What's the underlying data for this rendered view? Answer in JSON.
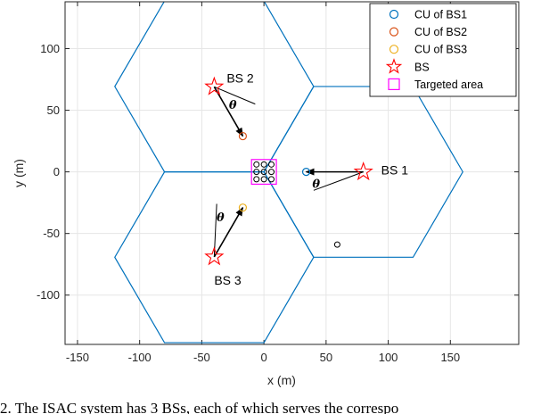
{
  "chart_data": {
    "type": "scatter",
    "xlabel": "x (m)",
    "ylabel": "y (m)",
    "xlim": [
      -160,
      205
    ],
    "ylim": [
      -140,
      138
    ],
    "xticks": [
      -150,
      -100,
      -50,
      0,
      50,
      100,
      150
    ],
    "yticks": [
      -100,
      -50,
      0,
      50,
      100
    ],
    "grid": true,
    "legend_position": "top-right",
    "legend": [
      {
        "label": "CU of  BS1",
        "marker": "circle",
        "color": "#0072BD"
      },
      {
        "label": "CU of BS2",
        "marker": "circle",
        "color": "#D95319"
      },
      {
        "label": "CU of BS3",
        "marker": "circle",
        "color": "#EDB120"
      },
      {
        "label": "BS",
        "marker": "pentagram",
        "color": "#FF0000"
      },
      {
        "label": "Targeted area",
        "marker": "square",
        "color": "#FF00FF"
      }
    ],
    "hexagons": [
      {
        "center": [
          80,
          0
        ],
        "radius": 80
      },
      {
        "center": [
          -40,
          69.3
        ],
        "radius": 80
      },
      {
        "center": [
          -40,
          -69.3
        ],
        "radius": 80
      }
    ],
    "hex_color": "#0072BD",
    "base_stations": [
      {
        "label": "BS 1",
        "x": 80,
        "y": 0
      },
      {
        "label": "BS 2",
        "x": -40,
        "y": 69
      },
      {
        "label": "BS 3",
        "x": -40,
        "y": -69
      }
    ],
    "cus": [
      {
        "bs": "BS1",
        "x": 34,
        "y": 0,
        "color": "#0072BD"
      },
      {
        "bs": "BS2",
        "x": -17,
        "y": 29,
        "color": "#D95319"
      },
      {
        "bs": "BS3",
        "x": -17,
        "y": -29,
        "color": "#EDB120"
      }
    ],
    "targets": [
      {
        "x": -6,
        "y": 6
      },
      {
        "x": 0,
        "y": 6
      },
      {
        "x": 6,
        "y": 6
      },
      {
        "x": -6,
        "y": 0
      },
      {
        "x": 0,
        "y": 0
      },
      {
        "x": 6,
        "y": 0
      },
      {
        "x": -6,
        "y": -6
      },
      {
        "x": 0,
        "y": -6
      },
      {
        "x": 6,
        "y": -6
      },
      {
        "x": 59,
        "y": -59
      }
    ],
    "target_area": {
      "x_range": [
        -10,
        10
      ],
      "y_range": [
        -10,
        10
      ]
    },
    "arrows": [
      {
        "from": [
          80,
          0
        ],
        "to": [
          34,
          0
        ]
      },
      {
        "from": [
          -40,
          69
        ],
        "to": [
          -17,
          29
        ]
      },
      {
        "from": [
          -40,
          -69
        ],
        "to": [
          -17,
          -29
        ]
      }
    ],
    "reference_lines": [
      {
        "from": [
          80,
          0
        ],
        "to": [
          40,
          -15
        ]
      },
      {
        "from": [
          -40,
          69
        ],
        "to": [
          -7,
          55
        ]
      },
      {
        "from": [
          -40,
          -69
        ],
        "to": [
          -38,
          -26
        ]
      }
    ],
    "theta_labels": [
      {
        "text": "θ",
        "x": 42,
        "y": -13
      },
      {
        "text": "θ",
        "x": -25,
        "y": 51
      },
      {
        "text": "θ",
        "x": -35,
        "y": -40
      }
    ]
  },
  "caption": "2. The ISAC system has 3 BSs, each of which serves the correspo"
}
